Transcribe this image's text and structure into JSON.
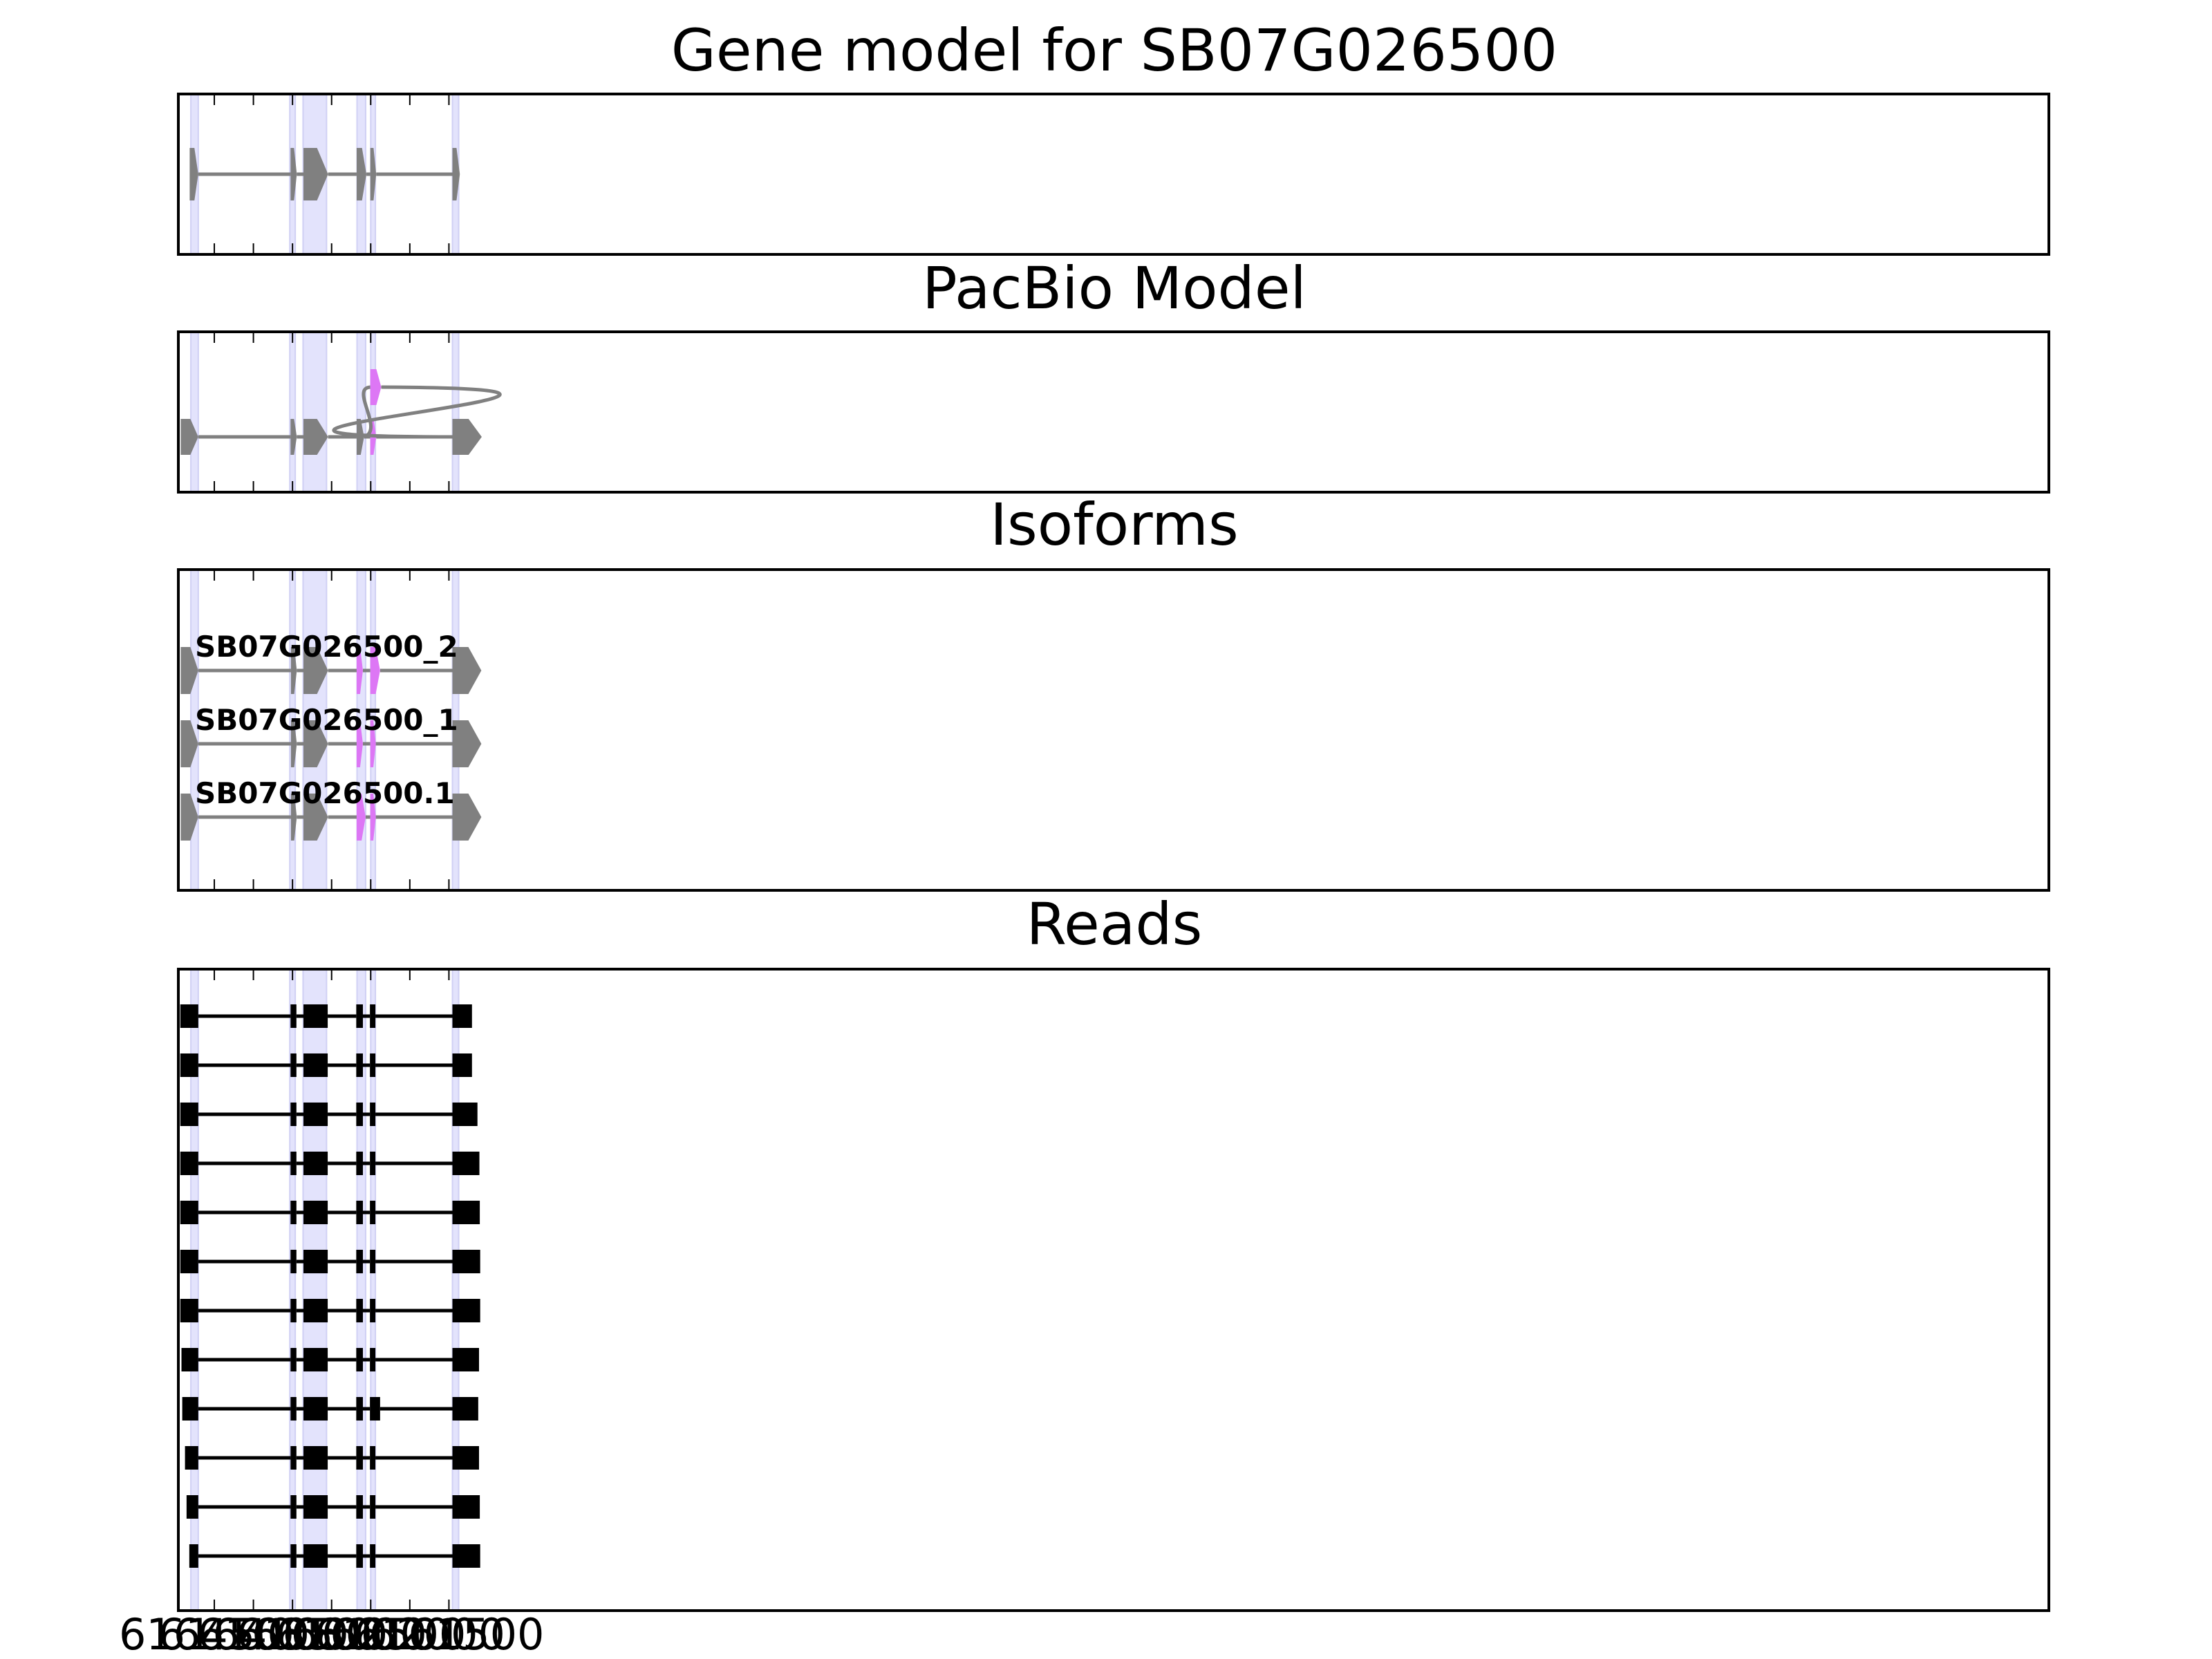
{
  "colors": {
    "background": "#ffffff",
    "frame": "#000000",
    "exon_gray": "#808080",
    "exon_pink": "#dd77f5",
    "intron_gray": "#808080",
    "highlight": "#e3e3fc",
    "read_black": "#000000"
  },
  "chart_data": {
    "type": "gene structure / read alignment",
    "orientation": "reverse coordinates (decreasing left to right)",
    "x_range": [
      6164960,
      6141040
    ],
    "x_ticks": [
      6164500,
      6164000,
      6163500,
      6163000,
      6162500,
      6162000,
      6161500
    ],
    "x_tick_labels": [
      "6164500",
      "6164000",
      "6163500",
      "6163000",
      "6162500",
      "6162000",
      "6161500"
    ],
    "highlighted_exon_regions": [
      [
        6164800,
        6164705
      ],
      [
        6163535,
        6163465
      ],
      [
        6163365,
        6163065
      ],
      [
        6162675,
        6162565
      ],
      [
        6162500,
        6162440
      ],
      [
        6161455,
        6161375
      ]
    ],
    "panels": [
      {
        "id": "gene_model",
        "title": "Gene model for SB07G026500",
        "tracks": [
          {
            "label": "",
            "exons": [
              {
                "start": 6164815,
                "end": 6164705,
                "color": "gray"
              },
              {
                "start": 6163525,
                "end": 6163445,
                "color": "gray"
              },
              {
                "start": 6163360,
                "end": 6163045,
                "color": "gray"
              },
              {
                "start": 6162680,
                "end": 6162555,
                "color": "gray"
              },
              {
                "start": 6162505,
                "end": 6162430,
                "color": "gray"
              },
              {
                "start": 6161455,
                "end": 6161360,
                "color": "gray"
              }
            ]
          }
        ]
      },
      {
        "id": "pacbio_model",
        "title": "PacBio Model",
        "tracks": [
          {
            "label": "",
            "exons": [
              {
                "start": 6164930,
                "end": 6164705,
                "color": "gray"
              },
              {
                "start": 6163525,
                "end": 6163445,
                "color": "gray"
              },
              {
                "start": 6163360,
                "end": 6163045,
                "color": "gray"
              },
              {
                "start": 6162680,
                "end": 6162585,
                "color": "gray"
              },
              {
                "start": 6162505,
                "end": 6162430,
                "color": "pink"
              },
              {
                "start": 6161455,
                "end": 6161080,
                "color": "gray"
              }
            ]
          },
          {
            "label": "",
            "alt_exon": {
              "start": 6162505,
              "end": 6162365,
              "color": "pink"
            }
          }
        ]
      },
      {
        "id": "isoforms",
        "title": "Isoforms",
        "tracks": [
          {
            "label": "SB07G026500_2",
            "exons": [
              {
                "start": 6164930,
                "end": 6164705,
                "color": "gray"
              },
              {
                "start": 6163520,
                "end": 6163445,
                "color": "gray"
              },
              {
                "start": 6163360,
                "end": 6163045,
                "color": "gray"
              },
              {
                "start": 6162680,
                "end": 6162600,
                "color": "pink"
              },
              {
                "start": 6162505,
                "end": 6162380,
                "color": "pink"
              },
              {
                "start": 6161455,
                "end": 6161085,
                "color": "gray"
              }
            ]
          },
          {
            "label": "SB07G026500_1",
            "exons": [
              {
                "start": 6164930,
                "end": 6164705,
                "color": "gray"
              },
              {
                "start": 6163520,
                "end": 6163445,
                "color": "gray"
              },
              {
                "start": 6163360,
                "end": 6163045,
                "color": "gray"
              },
              {
                "start": 6162680,
                "end": 6162600,
                "color": "pink"
              },
              {
                "start": 6162505,
                "end": 6162435,
                "color": "pink"
              },
              {
                "start": 6161455,
                "end": 6161085,
                "color": "gray"
              }
            ]
          },
          {
            "label": "SB07G026500.1",
            "exons": [
              {
                "start": 6164930,
                "end": 6164705,
                "color": "gray"
              },
              {
                "start": 6163520,
                "end": 6163445,
                "color": "gray"
              },
              {
                "start": 6163360,
                "end": 6163045,
                "color": "gray"
              },
              {
                "start": 6162680,
                "end": 6162565,
                "color": "pink"
              },
              {
                "start": 6162505,
                "end": 6162435,
                "color": "pink"
              },
              {
                "start": 6161455,
                "end": 6161085,
                "color": "gray"
              }
            ]
          }
        ]
      },
      {
        "id": "reads",
        "title": "Reads",
        "reads": [
          {
            "exons": [
              [
                6164935,
                6164705
              ],
              [
                6163525,
                6163450
              ],
              [
                6163360,
                6163050
              ],
              [
                6162685,
                6162600
              ],
              [
                6162510,
                6162440
              ],
              [
                6161455,
                6161205
              ]
            ]
          },
          {
            "exons": [
              [
                6164935,
                6164705
              ],
              [
                6163525,
                6163450
              ],
              [
                6163360,
                6163050
              ],
              [
                6162685,
                6162600
              ],
              [
                6162510,
                6162440
              ],
              [
                6161455,
                6161205
              ]
            ]
          },
          {
            "exons": [
              [
                6164935,
                6164705
              ],
              [
                6163525,
                6163450
              ],
              [
                6163360,
                6163050
              ],
              [
                6162685,
                6162600
              ],
              [
                6162510,
                6162440
              ],
              [
                6161455,
                6161135
              ]
            ]
          },
          {
            "exons": [
              [
                6164935,
                6164705
              ],
              [
                6163525,
                6163450
              ],
              [
                6163360,
                6163050
              ],
              [
                6162685,
                6162600
              ],
              [
                6162510,
                6162440
              ],
              [
                6161455,
                6161110
              ]
            ]
          },
          {
            "exons": [
              [
                6164935,
                6164705
              ],
              [
                6163525,
                6163450
              ],
              [
                6163360,
                6163050
              ],
              [
                6162685,
                6162600
              ],
              [
                6162510,
                6162440
              ],
              [
                6161455,
                6161105
              ]
            ]
          },
          {
            "exons": [
              [
                6164935,
                6164705
              ],
              [
                6163525,
                6163450
              ],
              [
                6163360,
                6163050
              ],
              [
                6162685,
                6162600
              ],
              [
                6162510,
                6162440
              ],
              [
                6161455,
                6161100
              ]
            ]
          },
          {
            "exons": [
              [
                6164935,
                6164705
              ],
              [
                6163525,
                6163450
              ],
              [
                6163360,
                6163050
              ],
              [
                6162685,
                6162600
              ],
              [
                6162510,
                6162440
              ],
              [
                6161455,
                6161100
              ]
            ]
          },
          {
            "exons": [
              [
                6164920,
                6164705
              ],
              [
                6163525,
                6163450
              ],
              [
                6163360,
                6163050
              ],
              [
                6162685,
                6162600
              ],
              [
                6162510,
                6162440
              ],
              [
                6161455,
                6161115
              ]
            ]
          },
          {
            "exons": [
              [
                6164910,
                6164705
              ],
              [
                6163525,
                6163450
              ],
              [
                6163360,
                6163050
              ],
              [
                6162685,
                6162600
              ],
              [
                6162510,
                6162380
              ],
              [
                6161455,
                6161125
              ]
            ]
          },
          {
            "exons": [
              [
                6164875,
                6164705
              ],
              [
                6163525,
                6163450
              ],
              [
                6163360,
                6163050
              ],
              [
                6162685,
                6162600
              ],
              [
                6162510,
                6162440
              ],
              [
                6161455,
                6161115
              ]
            ]
          },
          {
            "exons": [
              [
                6164855,
                6164705
              ],
              [
                6163525,
                6163450
              ],
              [
                6163360,
                6163050
              ],
              [
                6162685,
                6162600
              ],
              [
                6162510,
                6162440
              ],
              [
                6161455,
                6161105
              ]
            ]
          },
          {
            "exons": [
              [
                6164820,
                6164705
              ],
              [
                6163525,
                6163450
              ],
              [
                6163360,
                6163050
              ],
              [
                6162685,
                6162600
              ],
              [
                6162510,
                6162440
              ],
              [
                6161455,
                6161100
              ]
            ]
          }
        ]
      }
    ]
  }
}
